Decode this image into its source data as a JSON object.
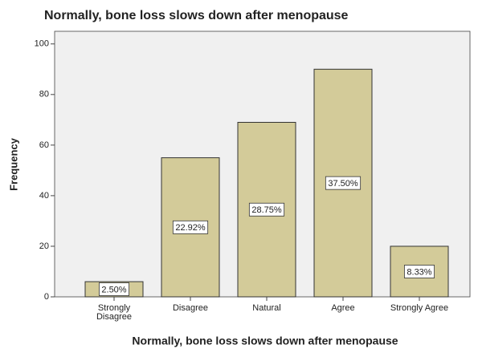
{
  "chart_data": {
    "type": "bar",
    "title": "Normally, bone loss slows down after menopause",
    "x_label": "Normally, bone loss slows down after menopause",
    "y_label": "Frequency",
    "categories": [
      "Strongly Disagree",
      "Disagree",
      "Natural",
      "Agree",
      "Strongly Agree"
    ],
    "values": [
      6,
      55,
      69,
      90,
      20
    ],
    "percentages": {
      "values": [
        2.5,
        22.92,
        28.75,
        37.5,
        8.33
      ],
      "value_labels": [
        "2.50%",
        "22.92%",
        "28.75%",
        "37.50%",
        "8.33%"
      ]
    },
    "color": "#d3cb99",
    "ylim": [
      0,
      105
    ],
    "yticks": [
      0,
      20,
      40,
      60,
      80,
      100
    ],
    "grid": false
  }
}
